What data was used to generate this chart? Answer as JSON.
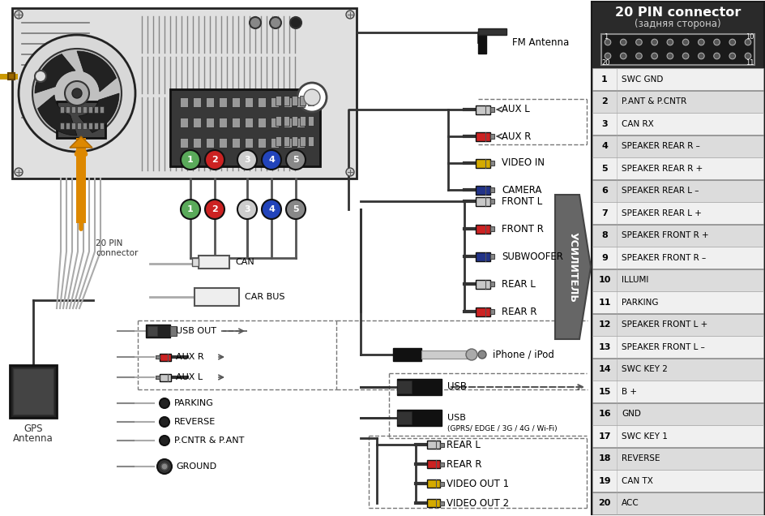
{
  "bg_color": "#ffffff",
  "title": "20 PIN connector",
  "subtitle": "(задняя сторона)",
  "pin_table": [
    [
      1,
      "SWC GND"
    ],
    [
      2,
      "P.ANT & P.CNTR"
    ],
    [
      3,
      "CAN RX"
    ],
    [
      4,
      "SPEAKER REAR R –"
    ],
    [
      5,
      "SPEAKER REAR R +"
    ],
    [
      6,
      "SPEAKER REAR L –"
    ],
    [
      7,
      "SPEAKER REAR L +"
    ],
    [
      8,
      "SPEAKER FRONT R +"
    ],
    [
      9,
      "SPEAKER FRONT R –"
    ],
    [
      10,
      "ILLUMI"
    ],
    [
      11,
      "PARKING"
    ],
    [
      12,
      "SPEAKER FRONT L +"
    ],
    [
      13,
      "SPEAKER FRONT L –"
    ],
    [
      14,
      "SWC KEY 2"
    ],
    [
      15,
      "B +"
    ],
    [
      16,
      "GND"
    ],
    [
      17,
      "SWC KEY 1"
    ],
    [
      18,
      "REVERSE"
    ],
    [
      19,
      "CAN TX"
    ],
    [
      20,
      "ACC"
    ]
  ],
  "усилитель_label": "УСИЛИТЕЛЬ",
  "top_rca_labels": [
    "AUX L",
    "AUX R",
    "VIDEO IN",
    "CAMERA"
  ],
  "top_rca_colors": [
    "#c8c8c8",
    "#cc2222",
    "#d4aa00",
    "#223388"
  ],
  "amp_rca_labels": [
    "FRONT L",
    "FRONT R",
    "SUBWOOFER",
    "REAR L",
    "REAR R"
  ],
  "amp_rca_colors": [
    "#c8c8c8",
    "#cc2222",
    "#223388",
    "#c8c8c8",
    "#cc2222"
  ],
  "out_rca_labels": [
    "REAR L",
    "REAR R",
    "VIDEO OUT 1",
    "VIDEO OUT 2"
  ],
  "out_rca_colors": [
    "#c8c8c8",
    "#cc2222",
    "#d4aa00",
    "#d4aa00"
  ],
  "bl_labels": [
    "USB OUT",
    "AUX R",
    "AUX L",
    "PARKING",
    "REVERSE",
    "P.CNTR & P.ANT",
    "GROUND"
  ],
  "bl_rca_colors": [
    "#222222",
    "#cc2222",
    "#c8c8c8"
  ],
  "conn_nums": [
    1,
    2,
    3,
    4,
    5
  ],
  "conn_colors": [
    "#5aaa5a",
    "#cc2222",
    "#888888",
    "#2244bb",
    "#666666"
  ]
}
